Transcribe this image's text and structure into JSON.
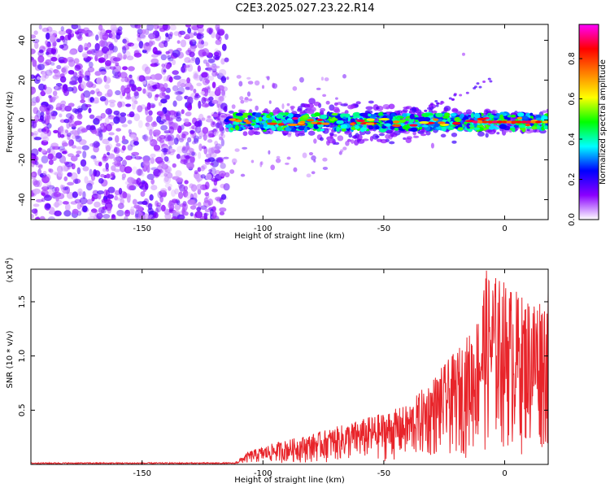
{
  "title": "C2E3.2025.027.23.22.R14",
  "chart_data": [
    {
      "type": "heatmap",
      "xlabel": "Height of straight line (km)",
      "ylabel": "Frequency (Hz)",
      "xlim": [
        -196,
        18
      ],
      "ylim": [
        -50,
        48
      ],
      "xticks": [
        -150,
        -100,
        -50,
        0
      ],
      "yticks": [
        -40,
        -20,
        0,
        20,
        40
      ],
      "colorbar": {
        "label": "Normalized spectral amplitude",
        "range": [
          0,
          0.97
        ],
        "ticks": [
          "0.0",
          "0.2",
          "0.4",
          "0.6",
          "0.8"
        ],
        "colormap": [
          "#ffffff",
          "#8a00ff",
          "#0000ff",
          "#00ffff",
          "#00ff00",
          "#ffff00",
          "#ff8000",
          "#ff0000",
          "#ff00ff"
        ]
      },
      "features": {
        "noise_region_x": [
          -196,
          -115
        ],
        "signal_band_x": [
          -115,
          18
        ],
        "signal_band_center_hz": 0,
        "signal_band_halfwidth_hz": 5,
        "diagonal_streak": {
          "x": [
            -40,
            -5
          ],
          "y": [
            2,
            20
          ]
        },
        "faint_dot": {
          "x": -17,
          "y": 33
        }
      }
    },
    {
      "type": "line",
      "xlabel": "Height of straight line (km)",
      "ylabel": "SNR (10 * v/v)",
      "exponent_label": "(x10",
      "exponent_power": "4",
      "exponent_close": ")",
      "xlim": [
        -196,
        18
      ],
      "ylim": [
        0,
        1.8
      ],
      "xticks": [
        -150,
        -100,
        -50,
        0
      ],
      "yticks": [
        "0.5",
        "1.0",
        "1.5"
      ],
      "line_color": "#e8242a",
      "envelope": [
        {
          "x": -196,
          "y": 0.01
        },
        {
          "x": -112,
          "y": 0.01
        },
        {
          "x": -106,
          "y": 0.12
        },
        {
          "x": -95,
          "y": 0.2
        },
        {
          "x": -80,
          "y": 0.28
        },
        {
          "x": -65,
          "y": 0.38
        },
        {
          "x": -50,
          "y": 0.48
        },
        {
          "x": -40,
          "y": 0.55
        },
        {
          "x": -30,
          "y": 0.8
        },
        {
          "x": -20,
          "y": 1.05
        },
        {
          "x": -12,
          "y": 1.3
        },
        {
          "x": -8,
          "y": 1.8
        },
        {
          "x": 0,
          "y": 1.7
        },
        {
          "x": 8,
          "y": 1.55
        },
        {
          "x": 18,
          "y": 1.6
        }
      ]
    }
  ]
}
